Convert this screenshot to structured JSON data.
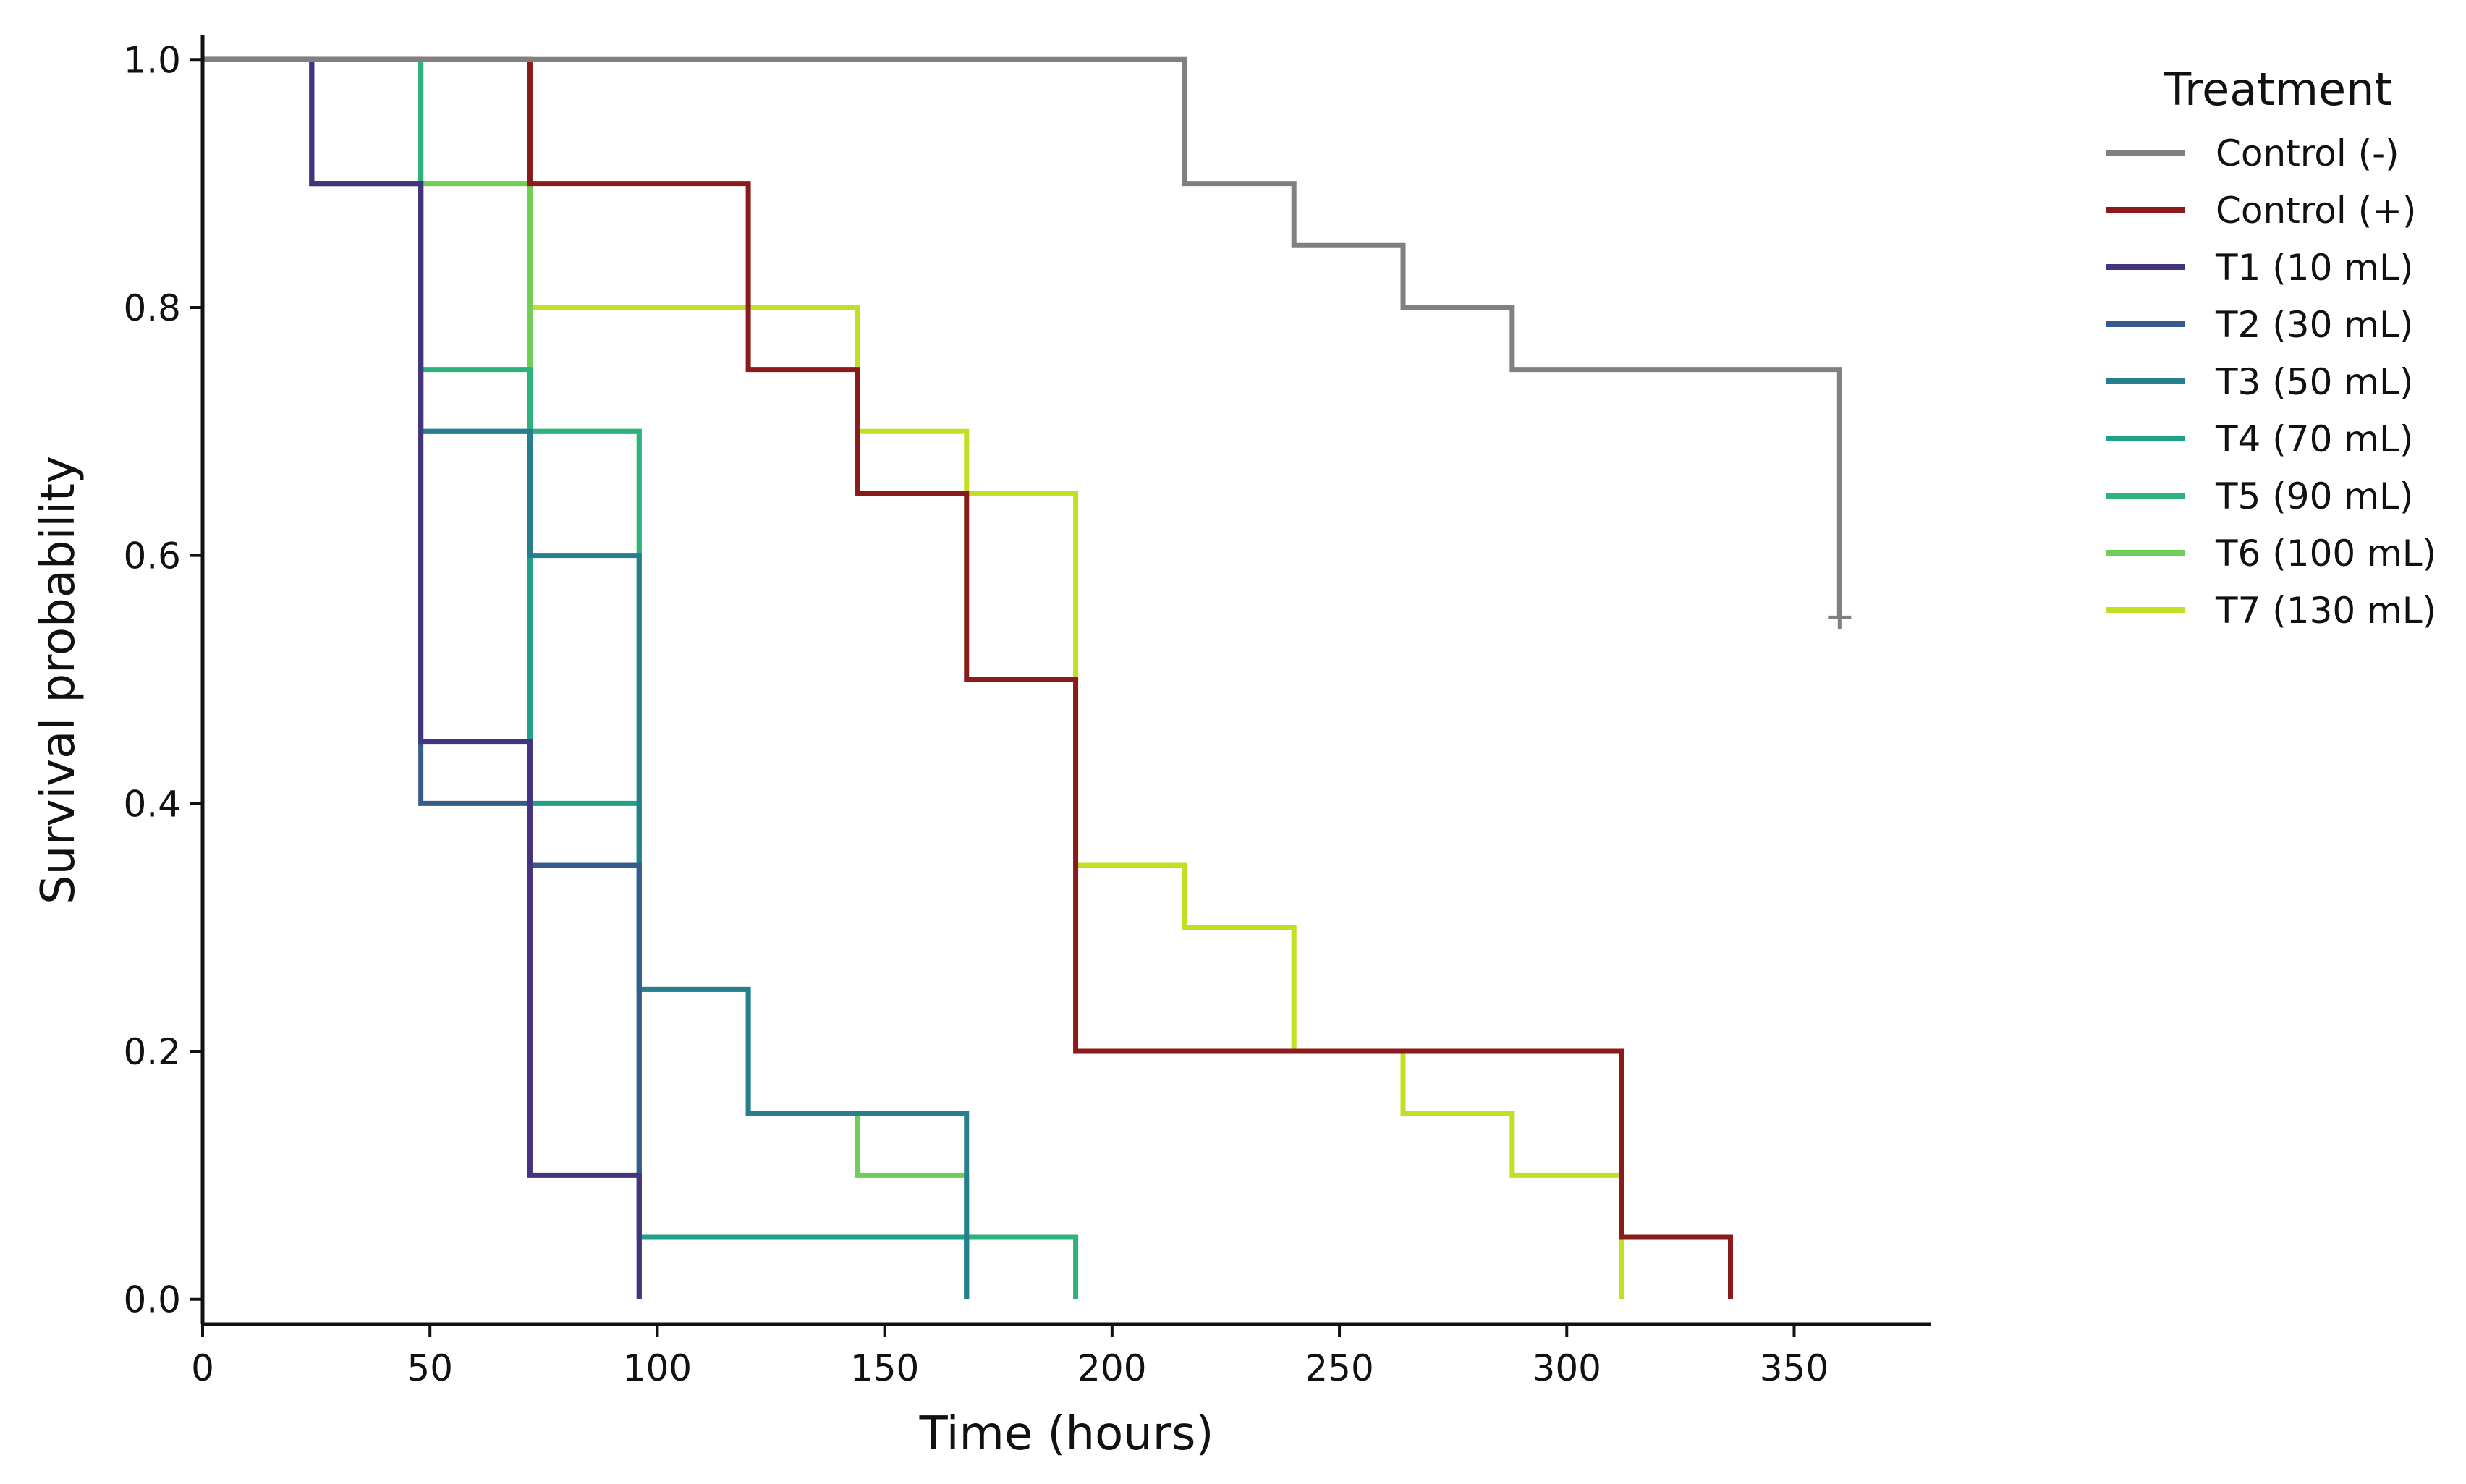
{
  "chart_data": {
    "type": "line",
    "subtype": "kaplan-meier step",
    "xlabel": "Time (hours)",
    "ylabel": "Survival probability",
    "xlim": [
      0,
      380
    ],
    "ylim": [
      -0.02,
      1.02
    ],
    "xticks": [
      0,
      50,
      100,
      150,
      200,
      250,
      300,
      350
    ],
    "xtick_labels": [
      "0",
      "50",
      "100",
      "150",
      "200",
      "250",
      "300",
      "350"
    ],
    "yticks": [
      0.0,
      0.2,
      0.4,
      0.6,
      0.8,
      1.0
    ],
    "ytick_labels": [
      "0.0",
      "0.2",
      "0.4",
      "0.6",
      "0.8",
      "1.0"
    ],
    "grid": false,
    "legend": {
      "title": "Treatment",
      "placement": "outside-right"
    },
    "series": [
      {
        "name": "Control (-)",
        "color": "#808080",
        "x": [
          0,
          216,
          240,
          264,
          288,
          360
        ],
        "y": [
          1.0,
          0.9,
          0.85,
          0.8,
          0.75,
          0.55
        ],
        "censored": [
          [
            360,
            0.55
          ]
        ]
      },
      {
        "name": "Control (+)",
        "color": "#8b1a1a",
        "x": [
          0,
          72,
          120,
          144,
          168,
          192,
          312,
          336
        ],
        "y": [
          1.0,
          0.9,
          0.75,
          0.65,
          0.5,
          0.2,
          0.05,
          0.0
        ]
      },
      {
        "name": "T1 (10 mL)",
        "color": "#46337e",
        "x": [
          0,
          24,
          48,
          72,
          96
        ],
        "y": [
          1.0,
          0.9,
          0.45,
          0.1,
          0.0
        ]
      },
      {
        "name": "T2 (30 mL)",
        "color": "#365c8d",
        "x": [
          0,
          24,
          48,
          72,
          96
        ],
        "y": [
          1.0,
          0.9,
          0.4,
          0.35,
          0.0
        ]
      },
      {
        "name": "T3 (50 mL)",
        "color": "#277f8e",
        "x": [
          0,
          24,
          48,
          72,
          96,
          120,
          168
        ],
        "y": [
          1.0,
          0.9,
          0.7,
          0.6,
          0.25,
          0.15,
          0.0
        ]
      },
      {
        "name": "T4 (70 mL)",
        "color": "#1fa187",
        "x": [
          0,
          24,
          48,
          72,
          96,
          168
        ],
        "y": [
          1.0,
          0.9,
          0.7,
          0.4,
          0.05,
          0.0
        ]
      },
      {
        "name": "T5 (90 mL)",
        "color": "#2db27d",
        "x": [
          0,
          48,
          72,
          96,
          192
        ],
        "y": [
          1.0,
          0.75,
          0.7,
          0.05,
          0.0
        ]
      },
      {
        "name": "T6 (100 mL)",
        "color": "#6ece58",
        "x": [
          0,
          48,
          72,
          96,
          120,
          144,
          168
        ],
        "y": [
          1.0,
          0.9,
          0.7,
          0.25,
          0.15,
          0.1,
          0.0
        ]
      },
      {
        "name": "T7 (130 mL)",
        "color": "#c2df23",
        "x": [
          0,
          48,
          72,
          144,
          168,
          192,
          216,
          240,
          264,
          288,
          312
        ],
        "y": [
          1.0,
          0.9,
          0.8,
          0.7,
          0.65,
          0.35,
          0.3,
          0.2,
          0.15,
          0.1,
          0.0
        ]
      }
    ]
  }
}
